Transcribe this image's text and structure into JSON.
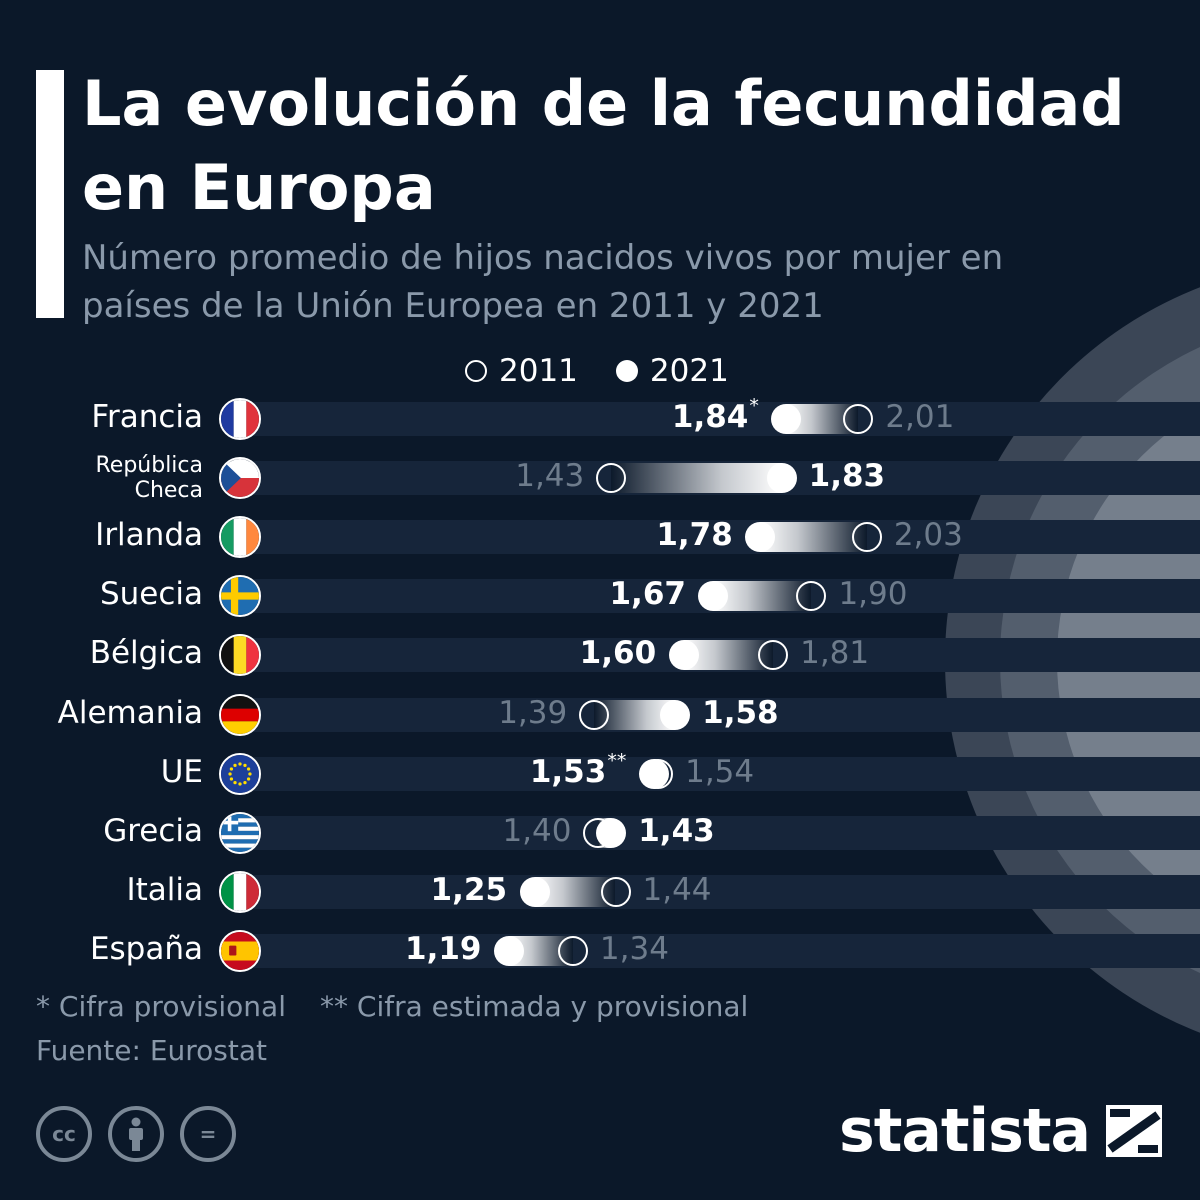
{
  "title": "La evolución de la fecundidad en Europa",
  "subtitle": "Número promedio de hijos nacidos vivos por mujer en países de la Unión Europea en 2011 y 2021",
  "legend": {
    "y2011": "2011",
    "y2021": "2021"
  },
  "colors": {
    "background": "#0b1829",
    "stripe": "#16253a",
    "accent": "#ffffff",
    "muted": "#6e7c8c"
  },
  "chart_data": {
    "type": "dumbbell",
    "title": "La evolución de la fecundidad en Europa",
    "subtitle": "Número promedio de hijos nacidos vivos por mujer en países de la Unión Europea en 2011 y 2021",
    "series": [
      {
        "name": "2011",
        "values": [
          2.01,
          1.43,
          2.03,
          1.9,
          1.81,
          1.39,
          1.54,
          1.4,
          1.44,
          1.34
        ]
      },
      {
        "name": "2021",
        "values": [
          1.84,
          1.83,
          1.78,
          1.67,
          1.6,
          1.58,
          1.53,
          1.43,
          1.25,
          1.19
        ]
      }
    ],
    "categories": [
      "Francia",
      "República Checa",
      "Irlanda",
      "Suecia",
      "Bélgica",
      "Alemania",
      "UE",
      "Grecia",
      "Italia",
      "España"
    ],
    "rows": [
      {
        "country": "Francia",
        "flag": "france-flag-icon",
        "v2011": 2.01,
        "v2021": 1.84,
        "label2011": "2,01",
        "label2021": "1,84",
        "mark2021": "*",
        "mark2011": ""
      },
      {
        "country": "República Checa",
        "flag": "czech-flag-icon",
        "v2011": 1.43,
        "v2021": 1.83,
        "label2011": "1,43",
        "label2021": "1,83",
        "mark2021": "",
        "mark2011": ""
      },
      {
        "country": "Irlanda",
        "flag": "ireland-flag-icon",
        "v2011": 2.03,
        "v2021": 1.78,
        "label2011": "2,03",
        "label2021": "1,78",
        "mark2021": "",
        "mark2011": ""
      },
      {
        "country": "Suecia",
        "flag": "sweden-flag-icon",
        "v2011": 1.9,
        "v2021": 1.67,
        "label2011": "1,90",
        "label2021": "1,67",
        "mark2021": "",
        "mark2011": ""
      },
      {
        "country": "Bélgica",
        "flag": "belgium-flag-icon",
        "v2011": 1.81,
        "v2021": 1.6,
        "label2011": "1,81",
        "label2021": "1,60",
        "mark2021": "",
        "mark2011": ""
      },
      {
        "country": "Alemania",
        "flag": "germany-flag-icon",
        "v2011": 1.39,
        "v2021": 1.58,
        "label2011": "1,39",
        "label2021": "1,58",
        "mark2021": "",
        "mark2011": ""
      },
      {
        "country": "UE",
        "flag": "eu-flag-icon",
        "v2011": 1.54,
        "v2021": 1.53,
        "label2011": "1,54",
        "label2021": "1,53",
        "mark2021": "**",
        "mark2011": ""
      },
      {
        "country": "Grecia",
        "flag": "greece-flag-icon",
        "v2011": 1.4,
        "v2021": 1.43,
        "label2011": "1,40",
        "label2021": "1,43",
        "mark2021": "",
        "mark2011": ""
      },
      {
        "country": "Italia",
        "flag": "italy-flag-icon",
        "v2011": 1.44,
        "v2021": 1.25,
        "label2011": "1,44",
        "label2021": "1,25",
        "mark2021": "",
        "mark2011": ""
      },
      {
        "country": "España",
        "flag": "spain-flag-icon",
        "v2011": 1.34,
        "v2021": 1.19,
        "label2011": "1,34",
        "label2021": "1,19",
        "mark2021": "",
        "mark2011": ""
      }
    ]
  },
  "footnotes": {
    "provisional": "* Cifra provisional",
    "estimated": "** Cifra estimada y provisional"
  },
  "source": "Fuente: Eurostat",
  "license_icons": [
    "cc-icon",
    "attribution-icon",
    "no-derivatives-icon"
  ],
  "license_labels": {
    "cc": "cc",
    "nd": "="
  },
  "brand": "statista"
}
